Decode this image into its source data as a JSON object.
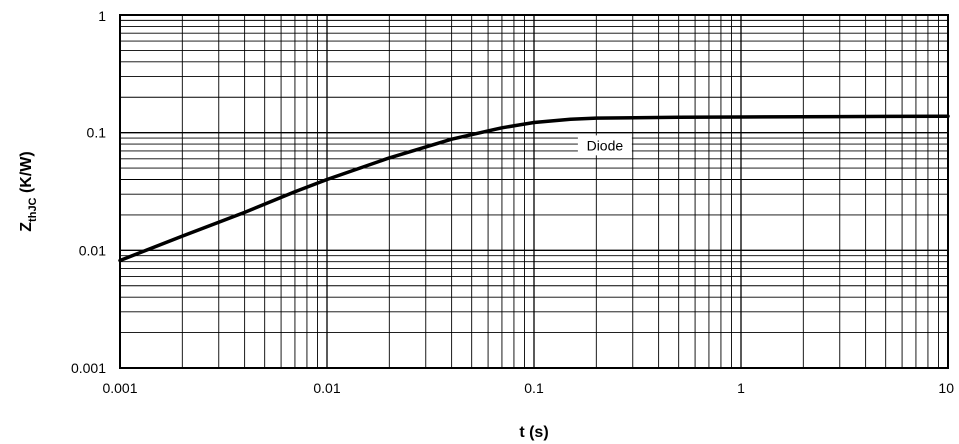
{
  "chart_data": {
    "type": "line",
    "xscale": "log",
    "yscale": "log",
    "xlim": [
      0.001,
      10
    ],
    "ylim": [
      0.001,
      1
    ],
    "grid": true,
    "xlabel": "t (s)",
    "ylabel_main": "Z",
    "ylabel_sub": "thJC",
    "ylabel_unit": " (K/W)",
    "x_ticks": [
      {
        "value": 0.001,
        "label": "0.001"
      },
      {
        "value": 0.01,
        "label": "0.01"
      },
      {
        "value": 0.1,
        "label": "0.1"
      },
      {
        "value": 1,
        "label": "1"
      },
      {
        "value": 10,
        "label": "10"
      }
    ],
    "y_ticks": [
      {
        "value": 0.001,
        "label": "0.001"
      },
      {
        "value": 0.01,
        "label": "0.01"
      },
      {
        "value": 0.1,
        "label": "0.1"
      },
      {
        "value": 1,
        "label": "1"
      }
    ],
    "annotation": {
      "text": "Diode",
      "x": 0.22,
      "y": 0.078
    },
    "series": [
      {
        "name": "Diode",
        "color": "#000000",
        "points": [
          {
            "x": 0.001,
            "y": 0.0082
          },
          {
            "x": 0.002,
            "y": 0.0132
          },
          {
            "x": 0.004,
            "y": 0.021
          },
          {
            "x": 0.007,
            "y": 0.0315
          },
          {
            "x": 0.01,
            "y": 0.04
          },
          {
            "x": 0.02,
            "y": 0.061
          },
          {
            "x": 0.04,
            "y": 0.088
          },
          {
            "x": 0.07,
            "y": 0.11
          },
          {
            "x": 0.1,
            "y": 0.122
          },
          {
            "x": 0.15,
            "y": 0.13
          },
          {
            "x": 0.2,
            "y": 0.133
          },
          {
            "x": 0.5,
            "y": 0.135
          },
          {
            "x": 1,
            "y": 0.136
          },
          {
            "x": 3,
            "y": 0.137
          },
          {
            "x": 10,
            "y": 0.138
          }
        ]
      }
    ]
  }
}
